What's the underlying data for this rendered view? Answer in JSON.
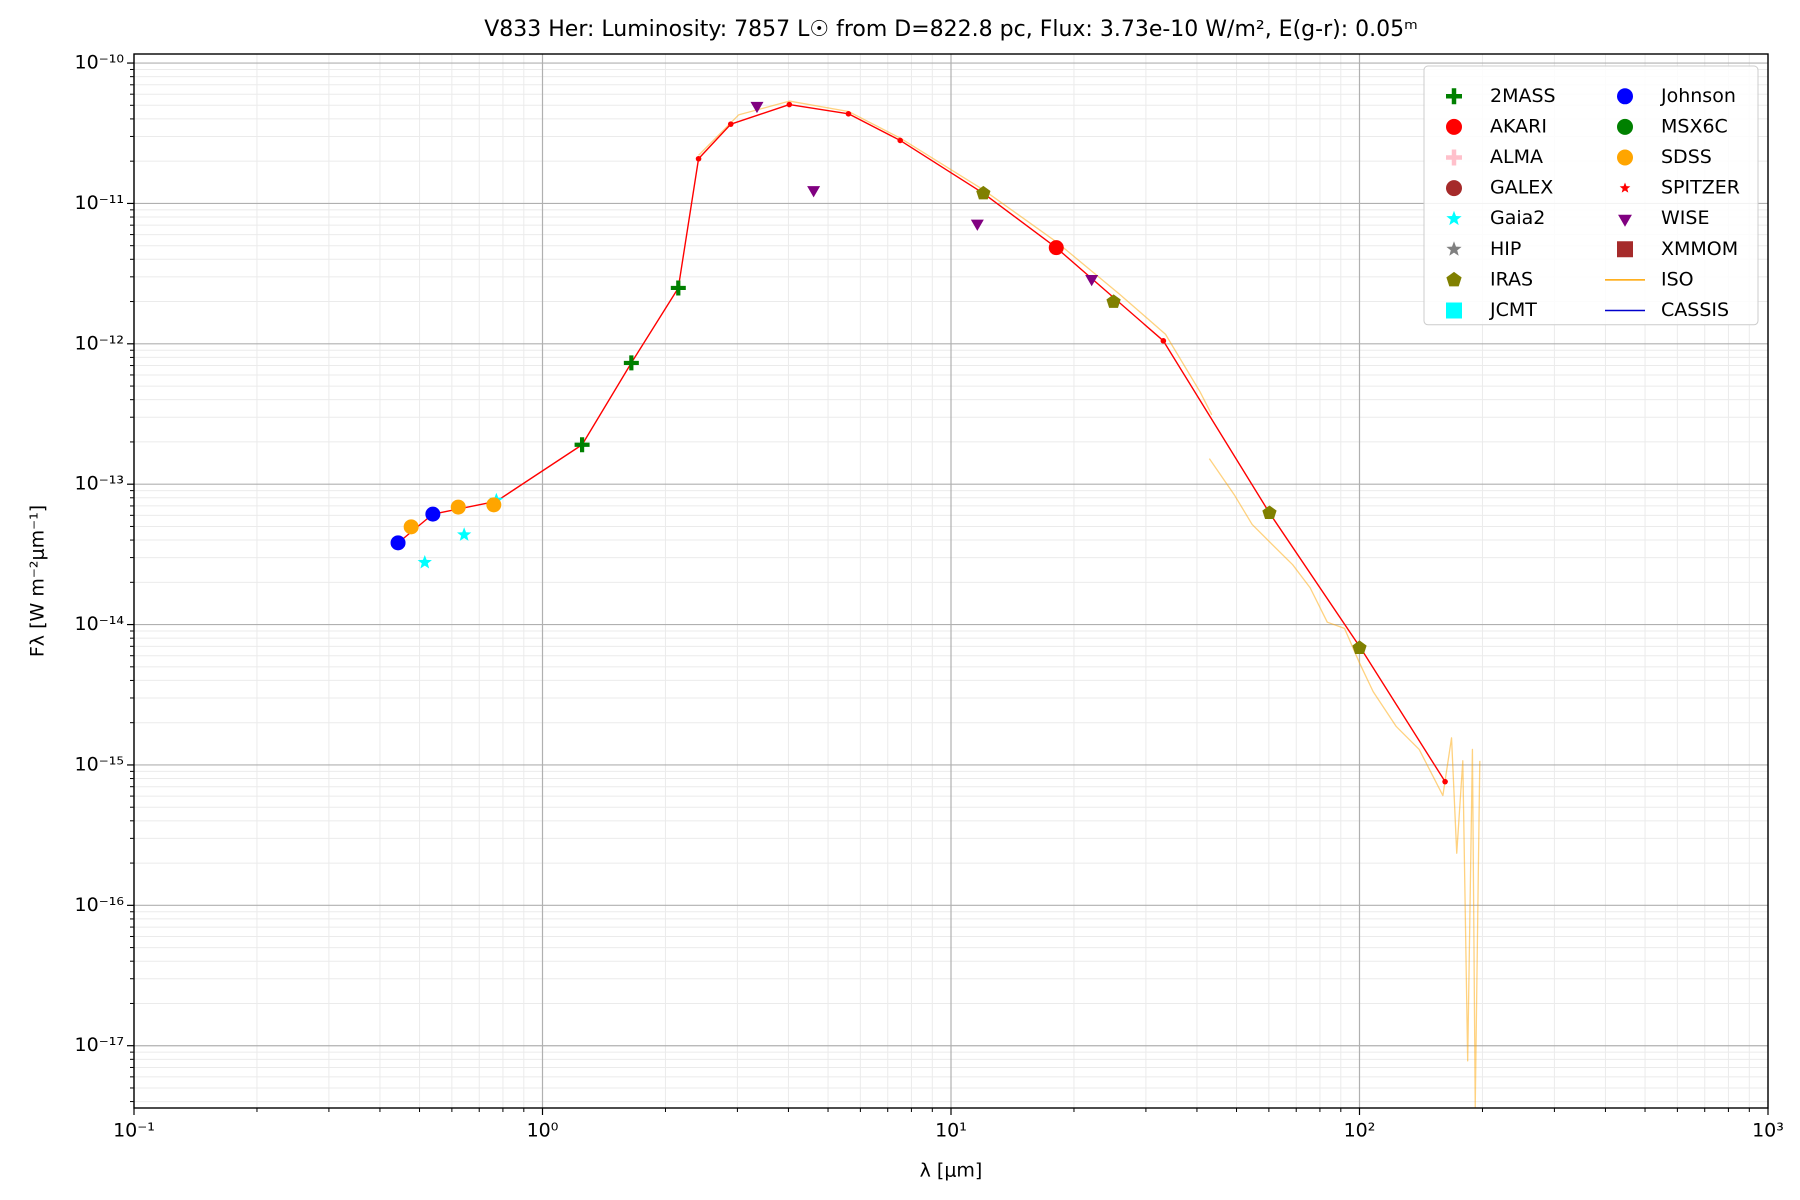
{
  "chart_data": {
    "type": "scatter",
    "title": "V833 Her:  Luminosity: 7857 L☉ from D=822.8 pc, Flux: 3.73e-10 W/m², E(g-r): 0.05ᵐ",
    "x_label": "λ [μm]",
    "y_label": "Fλ [W m⁻²μm⁻¹]",
    "xscale": "log",
    "yscale": "log",
    "xlim": [
      0.1,
      1000
    ],
    "ylim": [
      3.6e-18,
      1.16e-10
    ],
    "xticks": [
      {
        "value": 0.1,
        "label": "10⁻¹"
      },
      {
        "value": 1,
        "label": "10⁰"
      },
      {
        "value": 10,
        "label": "10¹"
      },
      {
        "value": 100,
        "label": "10²"
      },
      {
        "value": 1000,
        "label": "10³"
      }
    ],
    "yticks": [
      {
        "value": 1e-17,
        "label": "10⁻¹⁷"
      },
      {
        "value": 1e-16,
        "label": "10⁻¹⁶"
      },
      {
        "value": 1e-15,
        "label": "10⁻¹⁵"
      },
      {
        "value": 1e-14,
        "label": "10⁻¹⁴"
      },
      {
        "value": 1e-13,
        "label": "10⁻¹³"
      },
      {
        "value": 1e-12,
        "label": "10⁻¹²"
      },
      {
        "value": 1e-11,
        "label": "10⁻¹¹"
      },
      {
        "value": 1e-10,
        "label": "10⁻¹⁰"
      }
    ],
    "grid": "both",
    "legend": "upper right",
    "legend_columns": 2,
    "series": [
      {
        "name": "2MASS",
        "color": "#008000",
        "marker": "plus",
        "x": [
          1.25,
          1.65,
          2.15
        ],
        "values": [
          1.91e-13,
          7.31e-13,
          2.5e-12
        ]
      },
      {
        "name": "AKARI",
        "color": "#ff0000",
        "marker": "circle",
        "x": [
          18.1
        ],
        "values": [
          4.84e-12
        ]
      },
      {
        "name": "ALMA",
        "color": "#ffc0cb",
        "marker": "plus",
        "x": [],
        "values": []
      },
      {
        "name": "GALEX",
        "color": "#a52a2a",
        "marker": "circle",
        "x": [],
        "values": []
      },
      {
        "name": "Gaia2",
        "color": "#00ffff",
        "marker": "star",
        "x": [
          0.515,
          0.643,
          0.771
        ],
        "values": [
          2.77e-14,
          4.36e-14,
          7.69e-14
        ]
      },
      {
        "name": "HIP",
        "color": "#808080",
        "marker": "star",
        "x": [],
        "values": []
      },
      {
        "name": "IRAS",
        "color": "#808000",
        "marker": "pentagon",
        "x": [
          12.0,
          25.0,
          60.2,
          100
        ],
        "values": [
          1.18e-11,
          1.99e-12,
          6.24e-14,
          6.82e-15
        ]
      },
      {
        "name": "JCMT",
        "color": "#00ffff",
        "marker": "square",
        "x": [],
        "values": []
      },
      {
        "name": "Johnson",
        "color": "#0000ff",
        "marker": "circle",
        "x": [
          0.443,
          0.539
        ],
        "values": [
          3.82e-14,
          6.12e-14
        ]
      },
      {
        "name": "MSX6C",
        "color": "#008000",
        "marker": "circle",
        "x": [],
        "values": []
      },
      {
        "name": "SDSS",
        "color": "#ffa500",
        "marker": "circle",
        "x": [
          0.477,
          0.622,
          0.76
        ],
        "values": [
          4.97e-14,
          6.87e-14,
          7.13e-14
        ]
      },
      {
        "name": "SPITZER",
        "color": "#ff0000",
        "marker": "smallstar",
        "x": [],
        "values": []
      },
      {
        "name": "WISE",
        "color": "#800080",
        "marker": "triangle_down",
        "x": [
          3.35,
          4.61,
          11.6,
          22.1
        ],
        "values": [
          4.97e-11,
          1.25e-11,
          7.21e-12,
          2.91e-12
        ]
      },
      {
        "name": "XMMOM",
        "color": "#a52a2a",
        "marker": "square",
        "x": [],
        "values": []
      },
      {
        "name": "ISO",
        "color": "#ffa500",
        "marker": "line",
        "x": [
          2.41,
          3.02,
          4.02,
          5.61,
          7.51,
          12.0,
          18.1,
          25.8,
          33.5,
          40.7,
          43.5,
          null,
          42.9,
          49.5,
          54.6,
          60.2,
          68.6,
          75.7,
          83.4,
          91.9,
          100,
          108,
          123,
          140,
          160,
          168,
          173,
          179,
          184,
          189,
          192,
          197
        ],
        "values": [
          2.2e-11,
          4.27e-11,
          5.36e-11,
          4.52e-11,
          2.92e-11,
          1.25e-11,
          5.33e-12,
          2.27e-12,
          1.17e-12,
          4.55e-13,
          3.12e-13,
          null,
          1.52e-13,
          8.3e-14,
          5.17e-14,
          3.89e-14,
          2.67e-14,
          1.83e-14,
          1.04e-14,
          9.4e-15,
          5.33e-15,
          3.33e-15,
          1.88e-15,
          1.29e-15,
          6.05e-16,
          1.56e-15,
          2.35e-16,
          1.07e-15,
          7.8e-18,
          1.29e-15,
          3.66e-18,
          1.07e-15
        ]
      },
      {
        "name": "CASSIS",
        "color": "#0000cc",
        "marker": "line",
        "x": [],
        "values": []
      },
      {
        "color": "#ff0000",
        "marker": "line_dot",
        "x": [
          0.443,
          0.539,
          0.771,
          1.25,
          1.65,
          2.15,
          2.41,
          2.89,
          4.02,
          5.61,
          7.51,
          12.0,
          18.1,
          33.1,
          60.2,
          101,
          162
        ],
        "values": [
          3.82e-14,
          6.12e-14,
          7.55e-14,
          1.91e-13,
          7.31e-13,
          2.5e-12,
          2.08e-11,
          3.67e-11,
          5.06e-11,
          4.35e-11,
          2.81e-11,
          1.18e-11,
          4.84e-12,
          1.05e-12,
          6.24e-14,
          6.7e-15,
          7.6e-16
        ]
      }
    ]
  }
}
